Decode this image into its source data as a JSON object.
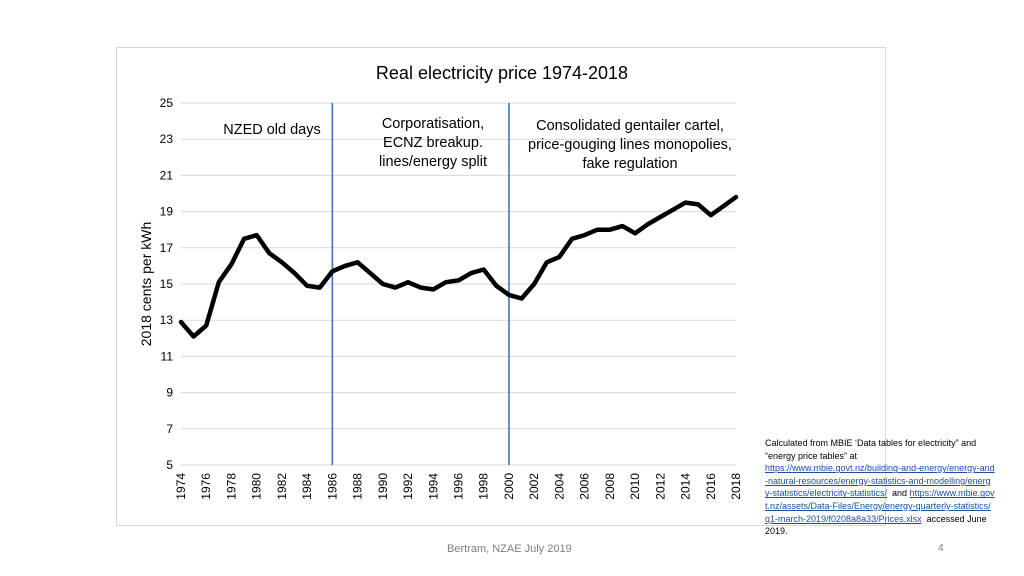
{
  "chart_data": {
    "type": "line",
    "title": "Real electricity price 1974-2018",
    "xlabel": "",
    "ylabel": "2018 cents per kWh",
    "ylim": [
      5,
      25
    ],
    "yticks": [
      5,
      7,
      9,
      11,
      13,
      15,
      17,
      19,
      21,
      23,
      25
    ],
    "xlim": [
      1974,
      2018
    ],
    "xticks": [
      1974,
      1976,
      1978,
      1980,
      1982,
      1984,
      1986,
      1988,
      1990,
      1992,
      1994,
      1996,
      1998,
      2000,
      2002,
      2004,
      2006,
      2008,
      2010,
      2012,
      2014,
      2016,
      2018
    ],
    "grid": true,
    "series": [
      {
        "name": "Real electricity price",
        "color": "#000000",
        "x": [
          1974,
          1975,
          1976,
          1977,
          1978,
          1979,
          1980,
          1981,
          1982,
          1983,
          1984,
          1985,
          1986,
          1987,
          1988,
          1989,
          1990,
          1991,
          1992,
          1993,
          1994,
          1995,
          1996,
          1997,
          1998,
          1999,
          2000,
          2001,
          2002,
          2003,
          2004,
          2005,
          2006,
          2007,
          2008,
          2009,
          2010,
          2011,
          2012,
          2013,
          2014,
          2015,
          2016,
          2017,
          2018
        ],
        "values": [
          12.9,
          12.1,
          12.7,
          15.1,
          16.1,
          17.5,
          17.7,
          16.7,
          16.2,
          15.6,
          14.9,
          14.8,
          15.7,
          16.0,
          16.2,
          15.6,
          15.0,
          14.8,
          15.1,
          14.8,
          14.7,
          15.1,
          15.2,
          15.6,
          15.8,
          14.9,
          14.4,
          14.2,
          15.0,
          16.2,
          16.5,
          17.5,
          17.7,
          18.0,
          18.0,
          18.2,
          17.8,
          18.3,
          18.7,
          19.1,
          19.5,
          19.4,
          18.8,
          19.3,
          19.8
        ]
      }
    ],
    "vertical_lines": [
      {
        "x": 1986,
        "color": "#4472c4"
      },
      {
        "x": 2000,
        "color": "#4472c4"
      }
    ],
    "annotations": [
      {
        "lines": [
          "NZED old days"
        ]
      },
      {
        "lines": [
          "Corporatisation,",
          "ECNZ breakup.",
          "lines/energy split"
        ]
      },
      {
        "lines": [
          "Consolidated gentailer cartel,",
          "price-gouging lines monopolies,",
          "fake regulation"
        ]
      }
    ]
  },
  "source_note": {
    "intro": "Calculated from MBIE ‘Data tables for electricity” and “energy price tables” at",
    "link1": "https://www.mbie.govt.nz/building-and-energy/energy-and-natural-resources/energy-statistics-and-modelling/energy-statistics/electricity-statistics/",
    "joiner": "and",
    "link2": "https://www.mbie.govt.nz/assets/Data-Files/Energy/energy-quarterly-statistics/q1-march-2019/f0208a8a33/Prices.xlsx",
    "accessed": "accessed June 2019."
  },
  "footer": {
    "credit": "Bertram, NZAE July 2019",
    "slide_number": "4"
  }
}
